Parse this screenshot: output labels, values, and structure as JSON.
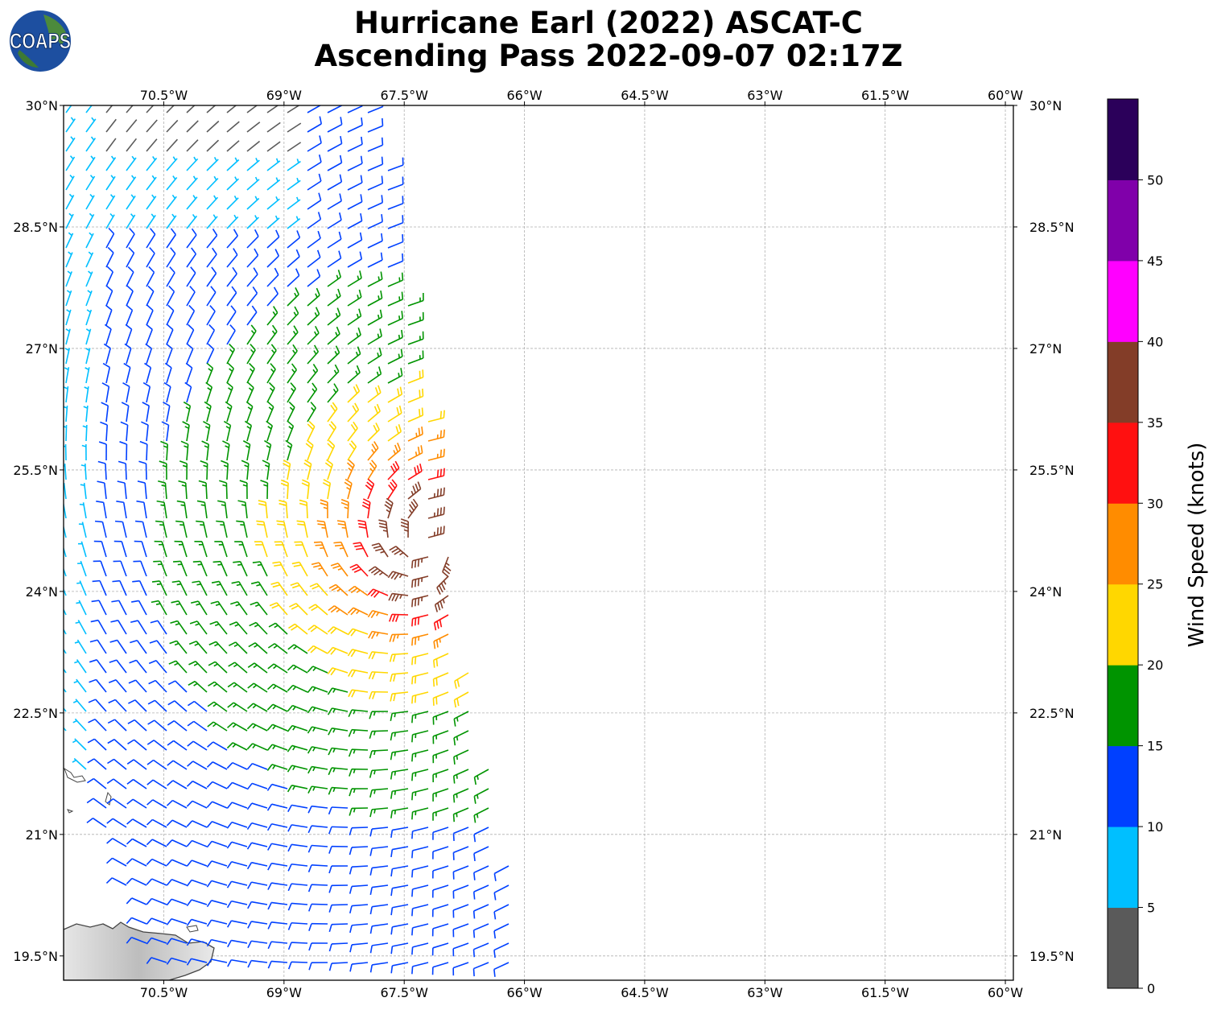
{
  "title": {
    "line1": "Hurricane Earl (2022) ASCAT-C",
    "line2": "Ascending Pass 2022-09-07 02:17Z"
  },
  "logo": {
    "text": "COAPS"
  },
  "map": {
    "lon_range": [
      -71.75,
      -59.9
    ],
    "lat_range": [
      19.2,
      30.0
    ],
    "lon_ticks": [
      -70.5,
      -69,
      -67.5,
      -66,
      -64.5,
      -63,
      -61.5,
      -60
    ],
    "lon_tick_labels": [
      "70.5°W",
      "69°W",
      "67.5°W",
      "66°W",
      "64.5°W",
      "63°W",
      "61.5°W",
      "60°W"
    ],
    "lat_ticks": [
      30,
      28.5,
      27,
      25.5,
      24,
      22.5,
      21,
      19.5
    ],
    "lat_tick_labels": [
      "30°N",
      "28.5°N",
      "27°N",
      "25.5°N",
      "24°N",
      "22.5°N",
      "21°N",
      "19.5°N"
    ],
    "gridlines": true,
    "storm_center": {
      "lon": -67.2,
      "lat": 24.6
    }
  },
  "colorbar": {
    "label": "Wind Speed (knots)",
    "ticks": [
      0,
      5,
      10,
      15,
      20,
      25,
      30,
      35,
      40,
      45,
      50
    ],
    "colors": [
      "#5a5a5a",
      "#00bfff",
      "#0040ff",
      "#009400",
      "#ffd700",
      "#ff8c00",
      "#ff1010",
      "#833d28",
      "#ff00ff",
      "#8000aa",
      "#2b005a"
    ]
  },
  "chart_data": {
    "type": "wind-barbs",
    "units": "knots",
    "fields": "Wind Speed"
  }
}
